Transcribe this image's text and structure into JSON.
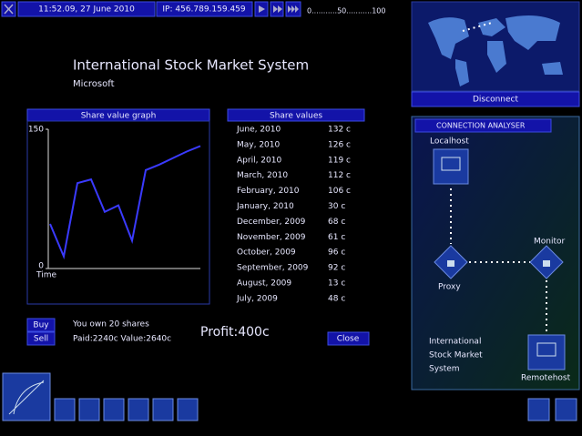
{
  "top_bar": {
    "time": "11:52.09, 27 June 2010",
    "ip": "IP: 456.789.159.459",
    "scale": "0...........50...........100"
  },
  "map_panel": {
    "button": "Disconnect"
  },
  "header": {
    "title": "International Stock Market System",
    "company": "Microsoft"
  },
  "graph": {
    "title": "Share value graph",
    "ylim": [
      0,
      150
    ],
    "yticks": [
      0,
      150
    ],
    "xlabel": "Time",
    "color": "#3a3aff"
  },
  "share_values": {
    "title": "Share values",
    "rows": [
      {
        "month": "June, 2010",
        "value": 132,
        "label": "132 c"
      },
      {
        "month": "May, 2010",
        "value": 126,
        "label": "126 c"
      },
      {
        "month": "April, 2010",
        "value": 119,
        "label": "119 c"
      },
      {
        "month": "March, 2010",
        "value": 112,
        "label": "112 c"
      },
      {
        "month": "February, 2010",
        "value": 106,
        "label": "106 c"
      },
      {
        "month": "January, 2010",
        "value": 30,
        "label": "30 c"
      },
      {
        "month": "December, 2009",
        "value": 68,
        "label": "68 c"
      },
      {
        "month": "November, 2009",
        "value": 61,
        "label": "61 c"
      },
      {
        "month": "October, 2009",
        "value": 96,
        "label": "96 c"
      },
      {
        "month": "September, 2009",
        "value": 92,
        "label": "92 c"
      },
      {
        "month": "August, 2009",
        "value": 13,
        "label": "13 c"
      },
      {
        "month": "July, 2009",
        "value": 48,
        "label": "48 c"
      }
    ]
  },
  "trade": {
    "buy": "Buy",
    "sell": "Sell",
    "owned": "You own 20 shares",
    "paid_value": "Paid:2240c Value:2640c",
    "profit": "Profit:400c",
    "close": "Close"
  },
  "connection_analyser": {
    "title": "CONNECTION ANALYSER",
    "localhost": "Localhost",
    "monitor": "Monitor",
    "proxy": "Proxy",
    "target_lines": [
      "International",
      "Stock Market",
      "System"
    ],
    "remotehost": "Remotehost"
  }
}
